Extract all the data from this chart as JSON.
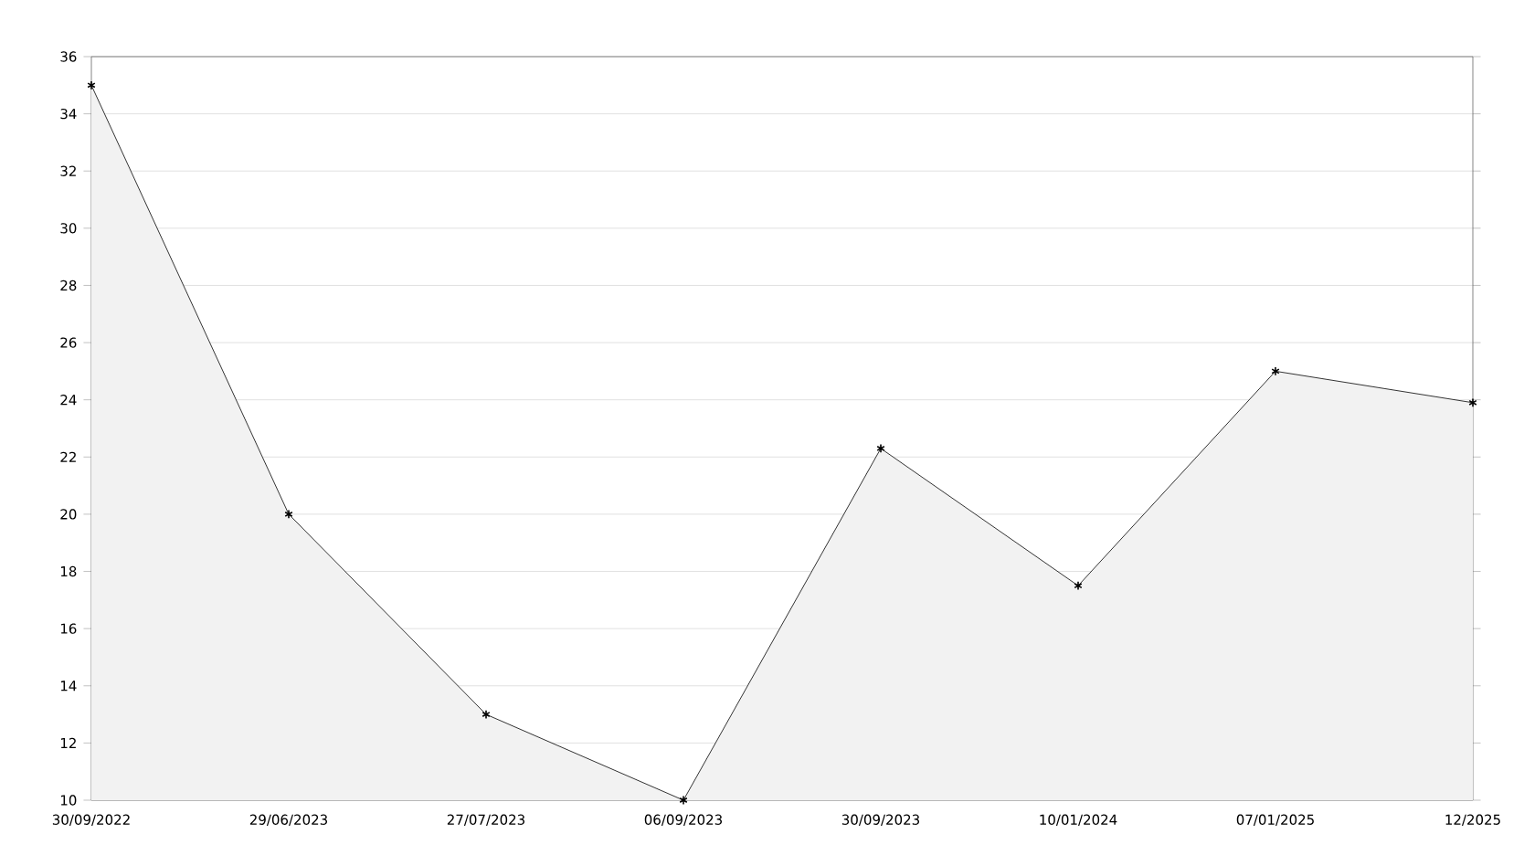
{
  "chart_data": {
    "type": "area",
    "categories": [
      "30/09/2022",
      "29/06/2023",
      "27/07/2023",
      "06/09/2023",
      "30/09/2023",
      "10/01/2024",
      "07/01/2025",
      "12/2025"
    ],
    "series": [
      {
        "color": "#000000",
        "values": [
          35,
          20,
          13,
          10,
          22.3,
          17.5,
          25,
          23.9
        ]
      }
    ],
    "ylim": [
      10,
      36
    ],
    "yticks": [
      10,
      12,
      14,
      16,
      18,
      20,
      22,
      24,
      26,
      28,
      30,
      32,
      34,
      36
    ],
    "grid": "y",
    "marker": "cross",
    "line_style": "solid"
  }
}
